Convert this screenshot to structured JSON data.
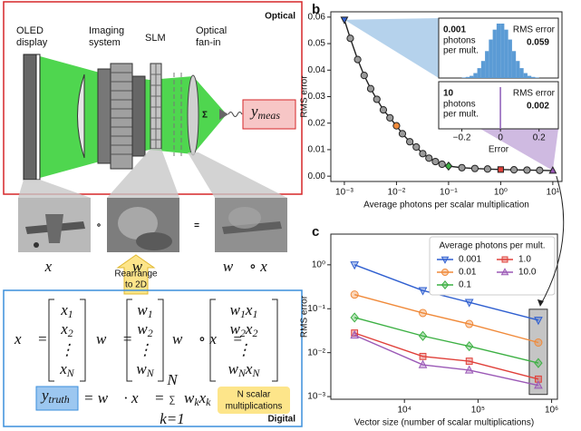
{
  "diagram": {
    "optical": {
      "title": "Optical",
      "oled": [
        "OLED",
        "display"
      ],
      "imaging": [
        "Imaging",
        "system"
      ],
      "slm": "SLM",
      "fan_in": [
        "Optical",
        "fan-in"
      ],
      "sum": "Σ",
      "y_meas": [
        [
          "y",
          "meas"
        ]
      ]
    },
    "images": {
      "x": "x⃗",
      "w": "w⃗",
      "product": "w⃗ ∘ x⃗",
      "times": "∘",
      "equals": "="
    },
    "rearrange": [
      "Rearrange",
      "to 2D"
    ],
    "digital": {
      "title": "Digital",
      "vectors": [
        {
          "lhs": "x⃗ =",
          "entries": [
            [
              [
                "x",
                "1"
              ]
            ],
            [
              [
                "x",
                "2"
              ]
            ],
            "⋮",
            [
              [
                "x",
                "N"
              ]
            ]
          ]
        },
        {
          "lhs": "w⃗ =",
          "entries": [
            [
              [
                "w",
                "1"
              ]
            ],
            [
              [
                "w",
                "2"
              ]
            ],
            "⋮",
            [
              [
                "w",
                "N"
              ]
            ]
          ]
        },
        {
          "lhs": "w⃗ ∘ x⃗ =",
          "entries": [
            [
              [
                "w",
                "1"
              ],
              [
                "x",
                "1"
              ]
            ],
            [
              [
                "w",
                "2"
              ],
              [
                "x",
                "2"
              ]
            ],
            "⋮",
            [
              [
                "w",
                "N"
              ],
              [
                "x",
                "N"
              ]
            ]
          ]
        }
      ],
      "dot": {
        "lhs": [
          [
            "y",
            "truth"
          ]
        ],
        "middle": "= w⃗ · x⃗ =",
        "sum": "∑",
        "upper": "N",
        "lower": "k=1",
        "term": [
          [
            "w",
            "k"
          ],
          [
            "x",
            "k"
          ]
        ]
      },
      "note": [
        "N scalar",
        "multiplications"
      ]
    }
  },
  "chart_data": [
    {
      "type": "line",
      "panel": "b",
      "xlabel": "Average photons per scalar multiplication",
      "ylabel": "RMS error",
      "log_x": true,
      "x": [
        0.001,
        0.0013,
        0.0018,
        0.0024,
        0.0032,
        0.0042,
        0.0056,
        0.0075,
        0.01,
        0.013,
        0.018,
        0.024,
        0.032,
        0.042,
        0.056,
        0.075,
        0.1,
        0.18,
        0.32,
        0.56,
        1,
        1.8,
        3.2,
        5.6,
        10
      ],
      "values": [
        0.059,
        0.052,
        0.044,
        0.038,
        0.033,
        0.029,
        0.025,
        0.022,
        0.019,
        0.016,
        0.013,
        0.011,
        0.0085,
        0.0068,
        0.0055,
        0.0045,
        0.0038,
        0.0032,
        0.0029,
        0.0027,
        0.0025,
        0.0024,
        0.0023,
        0.0022,
        0.0021
      ],
      "color": "#222222",
      "markers": [
        "triangle-down",
        "circle",
        "circle",
        "circle",
        "circle",
        "circle",
        "circle",
        "circle",
        "circle",
        "circle",
        "circle",
        "circle",
        "circle",
        "circle",
        "circle",
        "circle",
        "diamond",
        "circle",
        "circle",
        "circle",
        "square",
        "circle",
        "circle",
        "circle",
        "triangle-up"
      ],
      "marker_colors": [
        "#2f5fd0",
        "#9a9a9a",
        "#9a9a9a",
        "#9a9a9a",
        "#9a9a9a",
        "#9a9a9a",
        "#9a9a9a",
        "#9a9a9a",
        "#f08a3a",
        "#9a9a9a",
        "#9a9a9a",
        "#9a9a9a",
        "#9a9a9a",
        "#9a9a9a",
        "#9a9a9a",
        "#9a9a9a",
        "#3cb043",
        "#9a9a9a",
        "#9a9a9a",
        "#9a9a9a",
        "#e0403a",
        "#9a9a9a",
        "#9a9a9a",
        "#9a9a9a",
        "#9b59b6"
      ],
      "xlim": [
        0.00055,
        15
      ],
      "ylim": [
        -0.002,
        0.062
      ],
      "xticks": [
        {
          "value": 0.001,
          "label": "10⁻³"
        },
        {
          "value": 0.01,
          "label": "10⁻²"
        },
        {
          "value": 0.1,
          "label": "10⁻¹"
        },
        {
          "value": 1,
          "label": "10⁰"
        },
        {
          "value": 10,
          "label": "10¹"
        }
      ],
      "yticks": [
        {
          "value": 0,
          "label": "0.00"
        },
        0.01,
        0.02,
        0.03,
        0.04,
        0.05,
        0.06
      ],
      "insets": {
        "xlim": [
          -0.32,
          0.3
        ],
        "xticks": [
          {
            "value": -0.2,
            "label": "−0.2"
          },
          0,
          0.2
        ],
        "xlabel": "Error",
        "histograms": [
          {
            "photons": "0.001",
            "photons_label": [
              "photons",
              "per mult."
            ],
            "rms_label": "RMS error",
            "rms": "0.059",
            "color": "#5b9bd5",
            "bins": [
              -0.3,
              -0.28,
              -0.26,
              -0.24,
              -0.22,
              -0.2,
              -0.18,
              -0.16,
              -0.14,
              -0.12,
              -0.1,
              -0.08,
              -0.06,
              -0.04,
              -0.02,
              0,
              0.02,
              0.04,
              0.06,
              0.08,
              0.1,
              0.12,
              0.14,
              0.16,
              0.18,
              0.2,
              0.22,
              0.24,
              0.26,
              0.28,
              0.3
            ],
            "counts": [
              0,
              0,
              0,
              0,
              0,
              1,
              2,
              4,
              9,
              18,
              31,
              49,
              70,
              88,
              99,
              99,
              88,
              70,
              49,
              31,
              18,
              9,
              4,
              2,
              1,
              0,
              0,
              0,
              0,
              0
            ]
          },
          {
            "photons": "10",
            "photons_label": [
              "photons",
              "per mult."
            ],
            "rms_label": "RMS error",
            "rms": "0.002",
            "color": "#9467bd",
            "bins": [
              -0.3,
              -0.004,
              0,
              0.004,
              0.3
            ],
            "counts": [
              0,
              100,
              100,
              0
            ]
          }
        ]
      }
    },
    {
      "type": "line",
      "panel": "c",
      "xlabel": "Vector size (number of scalar multiplications)",
      "ylabel": "RMS error",
      "log_x": true,
      "log_y": true,
      "x": [
        2100,
        17800,
        76000,
        660000
      ],
      "series": [
        {
          "name": "0.001",
          "color": "#2f5fd0",
          "marker": "triangle-down",
          "values": [
            1.0,
            0.26,
            0.14,
            0.055
          ]
        },
        {
          "name": "0.01",
          "color": "#f08a3a",
          "marker": "circle",
          "values": [
            0.21,
            0.08,
            0.045,
            0.017
          ]
        },
        {
          "name": "0.1",
          "color": "#3cb043",
          "marker": "diamond",
          "values": [
            0.063,
            0.024,
            0.014,
            0.0058
          ]
        },
        {
          "name": "1.0",
          "color": "#e0403a",
          "marker": "square",
          "values": [
            0.028,
            0.0082,
            0.0064,
            0.0025
          ]
        },
        {
          "name": "10.0",
          "color": "#9b59b6",
          "marker": "triangle-up",
          "values": [
            0.025,
            0.0053,
            0.004,
            0.0018
          ]
        }
      ],
      "legend_title": "Average photons per mult.",
      "legend_loc": "upper right",
      "legend_columns": 2,
      "xlim": [
        1000,
        1200000
      ],
      "ylim": [
        0.00087,
        5
      ],
      "xticks": [
        {
          "value": 10000,
          "label": "10⁴"
        },
        {
          "value": 100000,
          "label": "10⁵"
        },
        {
          "value": 1000000,
          "label": "10⁶"
        }
      ],
      "yticks": [
        {
          "value": 0.001,
          "label": "10⁻³"
        },
        {
          "value": 0.01,
          "label": "10⁻²"
        },
        {
          "value": 0.1,
          "label": "10⁻¹"
        },
        {
          "value": 1,
          "label": "10⁰"
        }
      ]
    }
  ]
}
